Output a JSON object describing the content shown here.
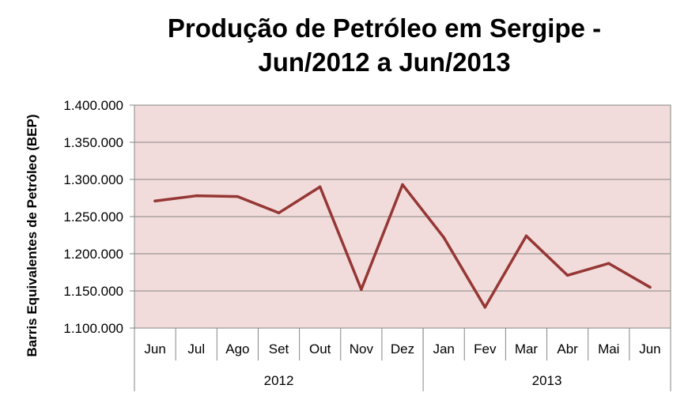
{
  "chart_data": {
    "type": "line",
    "title_lines": [
      "Produção de Petróleo em Sergipe -",
      "Jun/2012 a Jun/2013"
    ],
    "ylabel": "Barris Equivalentes de Petróleo (BEP)",
    "xlabel": "",
    "ylim": [
      1100000,
      1400000
    ],
    "y_ticks": [
      1100000,
      1150000,
      1200000,
      1250000,
      1300000,
      1350000,
      1400000
    ],
    "y_tick_labels": [
      "1.100.000",
      "1.150.000",
      "1.200.000",
      "1.250.000",
      "1.300.000",
      "1.350.000",
      "1.400.000"
    ],
    "categories": [
      "Jun",
      "Jul",
      "Ago",
      "Set",
      "Out",
      "Nov",
      "Dez",
      "Jan",
      "Fev",
      "Mar",
      "Abr",
      "Mai",
      "Jun"
    ],
    "year_groups": [
      {
        "label": "2012",
        "start": 0,
        "end": 6
      },
      {
        "label": "2013",
        "start": 7,
        "end": 12
      }
    ],
    "series": [
      {
        "values": [
          1271000,
          1278000,
          1277000,
          1255000,
          1290000,
          1152000,
          1293000,
          1222000,
          1128000,
          1224000,
          1171000,
          1187000,
          1155000
        ]
      }
    ],
    "grid": true,
    "legend": "none",
    "colors": {
      "line": "#953735",
      "plot_bg": "#f2dcdb",
      "grid": "#868686",
      "axis": "#868686"
    }
  }
}
